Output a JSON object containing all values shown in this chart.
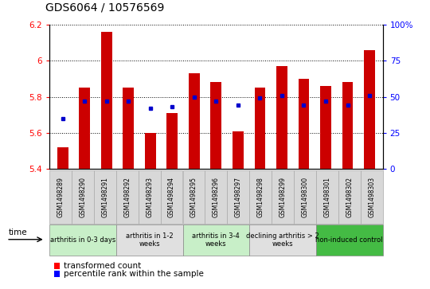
{
  "title": "GDS6064 / 10576569",
  "samples": [
    "GSM1498289",
    "GSM1498290",
    "GSM1498291",
    "GSM1498292",
    "GSM1498293",
    "GSM1498294",
    "GSM1498295",
    "GSM1498296",
    "GSM1498297",
    "GSM1498298",
    "GSM1498299",
    "GSM1498300",
    "GSM1498301",
    "GSM1498302",
    "GSM1498303"
  ],
  "transformed_count": [
    5.52,
    5.85,
    6.16,
    5.85,
    5.6,
    5.71,
    5.93,
    5.88,
    5.61,
    5.85,
    5.97,
    5.9,
    5.86,
    5.88,
    6.06
  ],
  "percentile_rank": [
    35,
    47,
    47,
    47,
    42,
    43,
    50,
    47,
    44,
    49,
    51,
    44,
    47,
    44,
    51
  ],
  "ylim_left": [
    5.4,
    6.2
  ],
  "ylim_right": [
    0,
    100
  ],
  "yticks_left": [
    5.4,
    5.6,
    5.8,
    6.0,
    6.2
  ],
  "ytick_labels_left": [
    "5.4",
    "5.6",
    "5.8",
    "6",
    "6.2"
  ],
  "yticks_right": [
    0,
    25,
    50,
    75,
    100
  ],
  "ytick_labels_right": [
    "0",
    "25",
    "50",
    "75",
    "100%"
  ],
  "groups": [
    {
      "label": "arthritis in 0-3 days",
      "start": 0,
      "end": 3,
      "color": "#c8efc8"
    },
    {
      "label": "arthritis in 1-2\nweeks",
      "start": 3,
      "end": 6,
      "color": "#e0e0e0"
    },
    {
      "label": "arthritis in 3-4\nweeks",
      "start": 6,
      "end": 9,
      "color": "#c8efc8"
    },
    {
      "label": "declining arthritis > 2\nweeks",
      "start": 9,
      "end": 12,
      "color": "#e0e0e0"
    },
    {
      "label": "non-induced control",
      "start": 12,
      "end": 15,
      "color": "#44bb44"
    }
  ],
  "bar_color": "#cc0000",
  "dot_color": "#0000cc",
  "bar_bottom": 5.4,
  "bar_width": 0.5,
  "xlabel_box_color": "#d8d8d8",
  "xlabel_box_border": "#aaaaaa"
}
